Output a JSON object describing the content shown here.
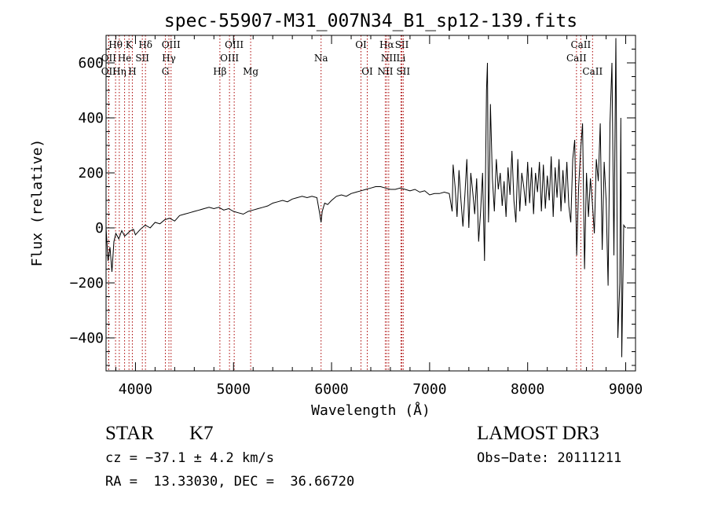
{
  "chart_data": {
    "type": "line",
    "title": "spec-55907-M31_007N34_B1_sp12-139.fits",
    "xlabel": "Wavelength (Å)",
    "ylabel": "Flux (relative)",
    "xlim": [
      3700,
      9100
    ],
    "ylim": [
      -520,
      700
    ],
    "xticks": [
      4000,
      5000,
      6000,
      7000,
      8000,
      9000
    ],
    "xtick_labels": [
      "4000",
      "5000",
      "6000",
      "7000",
      "8000",
      "9000"
    ],
    "yticks": [
      -400,
      -200,
      0,
      200,
      400,
      600
    ],
    "ytick_labels": [
      "−400",
      "−200",
      "0",
      "200",
      "400",
      "600"
    ],
    "grid": false,
    "line_color": "#000000",
    "marker_color": "#aa0000",
    "series": [
      {
        "x": [
          3700,
          3720,
          3740,
          3760,
          3780,
          3800,
          3830,
          3860,
          3890,
          3920,
          3950,
          3980,
          4000,
          4050,
          4100,
          4150,
          4200,
          4250,
          4300,
          4350,
          4400,
          4450,
          4500,
          4550,
          4600,
          4650,
          4700,
          4750,
          4800,
          4850,
          4900,
          4950,
          5000,
          5050,
          5100,
          5150,
          5200,
          5250,
          5300,
          5350,
          5400,
          5450,
          5500,
          5550,
          5600,
          5650,
          5700,
          5750,
          5800,
          5850,
          5880,
          5893,
          5905,
          5930,
          5960,
          6000,
          6050,
          6100,
          6150,
          6200,
          6250,
          6300,
          6350,
          6400,
          6450,
          6500,
          6550,
          6600,
          6650,
          6700,
          6750,
          6800,
          6850,
          6900,
          6950,
          7000,
          7050,
          7100,
          7150,
          7200,
          7230,
          7240,
          7260,
          7280,
          7300,
          7320,
          7340,
          7360,
          7380,
          7400,
          7420,
          7440,
          7460,
          7480,
          7500,
          7520,
          7540,
          7560,
          7580,
          7590,
          7600,
          7610,
          7620,
          7640,
          7660,
          7680,
          7700,
          7720,
          7740,
          7760,
          7780,
          7800,
          7820,
          7840,
          7860,
          7880,
          7900,
          7920,
          7940,
          7960,
          7980,
          8000,
          8020,
          8040,
          8060,
          8080,
          8100,
          8120,
          8140,
          8160,
          8180,
          8200,
          8220,
          8240,
          8260,
          8280,
          8300,
          8320,
          8340,
          8360,
          8380,
          8400,
          8420,
          8440,
          8460,
          8480,
          8500,
          8520,
          8540,
          8560,
          8580,
          8600,
          8620,
          8640,
          8660,
          8680,
          8700,
          8720,
          8740,
          8760,
          8780,
          8800,
          8820,
          8840,
          8860,
          8880,
          8900,
          8920,
          8940,
          8950,
          8960,
          8980,
          9000
        ],
        "y": [
          0,
          -120,
          -70,
          -160,
          -50,
          -20,
          -40,
          -10,
          -30,
          -20,
          -10,
          -5,
          -25,
          -5,
          10,
          0,
          20,
          15,
          30,
          35,
          25,
          45,
          50,
          55,
          60,
          65,
          70,
          75,
          70,
          75,
          65,
          70,
          60,
          55,
          50,
          60,
          65,
          70,
          75,
          80,
          90,
          95,
          100,
          95,
          105,
          110,
          115,
          110,
          115,
          110,
          50,
          20,
          60,
          90,
          85,
          100,
          115,
          120,
          115,
          125,
          130,
          135,
          140,
          145,
          150,
          150,
          145,
          140,
          140,
          145,
          140,
          135,
          140,
          130,
          135,
          120,
          125,
          125,
          130,
          125,
          60,
          230,
          150,
          40,
          210,
          100,
          5,
          120,
          250,
          0,
          200,
          130,
          50,
          180,
          -50,
          60,
          200,
          -120,
          500,
          600,
          20,
          150,
          450,
          180,
          60,
          250,
          140,
          200,
          80,
          170,
          40,
          220,
          120,
          280,
          100,
          20,
          250,
          60,
          200,
          150,
          80,
          240,
          90,
          220,
          50,
          200,
          130,
          240,
          60,
          230,
          70,
          190,
          100,
          260,
          40,
          220,
          110,
          250,
          60,
          210,
          90,
          240,
          80,
          20,
          250,
          320,
          -100,
          150,
          280,
          380,
          -150,
          200,
          40,
          180,
          90,
          -20,
          250,
          170,
          380,
          -80,
          240,
          100,
          -210,
          380,
          600,
          -100,
          690,
          -400,
          -200,
          400,
          -470,
          10,
          0
        ]
      }
    ],
    "lines_row1": [
      {
        "label": "Hθ",
        "x": 3797
      },
      {
        "label": "K",
        "x": 3934
      },
      {
        "label": "Hδ",
        "x": 4102
      },
      {
        "label": "OIII",
        "x": 4363
      },
      {
        "label": "OIII",
        "x": 5007
      },
      {
        "label": "OI",
        "x": 6300
      },
      {
        "label": "Hα",
        "x": 6563
      },
      {
        "label": "SII",
        "x": 6717
      },
      {
        "label": "CaII",
        "x": 8542
      }
    ],
    "lines_row2": [
      {
        "label": "OII",
        "x": 3727
      },
      {
        "label": "He",
        "x": 3889
      },
      {
        "label": "SII",
        "x": 4070
      },
      {
        "label": "Hγ",
        "x": 4341
      },
      {
        "label": "OIII",
        "x": 4959
      },
      {
        "label": "Na",
        "x": 5893
      },
      {
        "label": "NII",
        "x": 6583
      },
      {
        "label": "Li",
        "x": 6708
      },
      {
        "label": "CaII",
        "x": 8498
      }
    ],
    "lines_row3": [
      {
        "label": "OII",
        "x": 3727
      },
      {
        "label": "Hη",
        "x": 3835
      },
      {
        "label": "H",
        "x": 3968
      },
      {
        "label": "G",
        "x": 4305
      },
      {
        "label": "Hβ",
        "x": 4861
      },
      {
        "label": "Mg",
        "x": 5175
      },
      {
        "label": "OI",
        "x": 6364
      },
      {
        "label": "NII",
        "x": 6548
      },
      {
        "label": "SII",
        "x": 6731
      },
      {
        "label": "CaII",
        "x": 8662
      }
    ]
  },
  "info": {
    "object_class": "STAR",
    "subclass": "K7",
    "cz_line": "cz = −37.1 ± 4.2 km/s",
    "radec_line": "RA =  13.33030, DEC =  36.66720",
    "survey": "LAMOST DR3",
    "obs_date_line": "Obs−Date: 20111211"
  }
}
